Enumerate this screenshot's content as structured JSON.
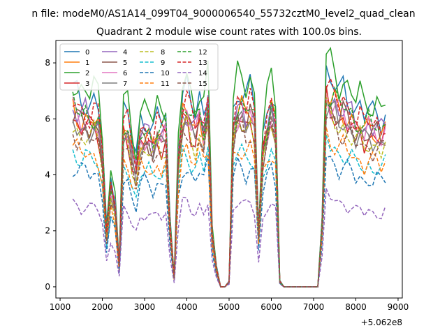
{
  "chart_data": {
    "type": "line",
    "suptitle": "n file: modeM0/AS1A14_099T04_9000006540_55732cztM0_level2_quad_clean",
    "title": "Quadrant 2 module wise count rates with 100.0s bins.",
    "xlabel": "",
    "ylabel": "",
    "x_offset_label": "+5.062e8",
    "xlim": [
      900,
      9100
    ],
    "ylim": [
      -0.4,
      8.8
    ],
    "x_ticks": [
      1000,
      2000,
      3000,
      4000,
      5000,
      6000,
      7000,
      8000,
      9000
    ],
    "x_tick_labels": [
      "1000",
      "2000",
      "3000",
      "4000",
      "5000",
      "6000",
      "7000",
      "8000",
      "9000"
    ],
    "y_ticks": [
      0,
      2,
      4,
      6,
      8
    ],
    "y_tick_labels": [
      "0",
      "2",
      "4",
      "6",
      "8"
    ],
    "x": [
      1300,
      1400,
      1500,
      1600,
      1700,
      1800,
      1900,
      2000,
      2100,
      2200,
      2300,
      2400,
      2500,
      2600,
      2700,
      2800,
      2900,
      3000,
      3100,
      3200,
      3300,
      3400,
      3500,
      3600,
      3700,
      3800,
      3900,
      4000,
      4100,
      4200,
      4300,
      4400,
      4500,
      4600,
      4700,
      4800,
      4900,
      5000,
      5100,
      5200,
      5300,
      5400,
      5500,
      5600,
      5700,
      5800,
      5900,
      6000,
      6100,
      6200,
      6300,
      6400,
      6500,
      6600,
      6700,
      6800,
      6900,
      7000,
      7100,
      7200,
      7300,
      7400,
      7500,
      7600,
      7700,
      7800,
      7900,
      8000,
      8100,
      8200,
      8300,
      8400,
      8500,
      8600,
      8700
    ],
    "shape": [
      1.0,
      0.97,
      0.95,
      0.96,
      0.93,
      0.95,
      0.92,
      0.75,
      0.3,
      0.55,
      0.45,
      0.12,
      0.9,
      0.88,
      0.75,
      0.66,
      0.85,
      0.86,
      0.85,
      0.8,
      0.87,
      0.84,
      0.88,
      0.35,
      0.05,
      0.72,
      0.98,
      1.0,
      0.92,
      0.88,
      0.97,
      0.88,
      1.02,
      0.3,
      0.1,
      0.0,
      0.0,
      0.03,
      0.9,
      1.0,
      1.0,
      0.95,
      1.0,
      0.93,
      0.3,
      0.78,
      0.9,
      1.0,
      0.9,
      0.03,
      0.0,
      0.0,
      0.0,
      0.0,
      0.0,
      0.0,
      0.0,
      0.0,
      0.0,
      0.35,
      1.1,
      1.05,
      1.03,
      0.98,
      1.0,
      0.97,
      0.95,
      0.9,
      0.92,
      0.87,
      0.9,
      0.88,
      0.89,
      0.86,
      0.9
    ],
    "series": [
      {
        "name": "0",
        "color": "#1f77b4",
        "dash": "solid",
        "level": 7.0
      },
      {
        "name": "1",
        "color": "#ff7f0e",
        "dash": "solid",
        "level": 6.3
      },
      {
        "name": "2",
        "color": "#2ca02c",
        "dash": "solid",
        "level": 7.4
      },
      {
        "name": "3",
        "color": "#d62728",
        "dash": "solid",
        "level": 6.0
      },
      {
        "name": "4",
        "color": "#9467bd",
        "dash": "solid",
        "level": 6.4
      },
      {
        "name": "5",
        "color": "#8c564b",
        "dash": "solid",
        "level": 6.1
      },
      {
        "name": "6",
        "color": "#e377c2",
        "dash": "solid",
        "level": 6.2
      },
      {
        "name": "7",
        "color": "#7f7f7f",
        "dash": "solid",
        "level": 5.9
      },
      {
        "name": "8",
        "color": "#bcbd22",
        "dash": "dashed",
        "level": 5.7
      },
      {
        "name": "9",
        "color": "#17becf",
        "dash": "dashed",
        "level": 4.8
      },
      {
        "name": "10",
        "color": "#1f77b4",
        "dash": "dashed",
        "level": 4.3
      },
      {
        "name": "11",
        "color": "#ff7f0e",
        "dash": "dashed",
        "level": 5.0
      },
      {
        "name": "12",
        "color": "#2ca02c",
        "dash": "dashed",
        "level": 6.5
      },
      {
        "name": "13",
        "color": "#d62728",
        "dash": "dashed",
        "level": 6.6
      },
      {
        "name": "14",
        "color": "#9467bd",
        "dash": "dashed",
        "level": 3.0
      },
      {
        "name": "15",
        "color": "#8c564b",
        "dash": "dashed",
        "level": 5.6
      }
    ],
    "legend": {
      "position": "top-left",
      "columns": 4
    }
  }
}
